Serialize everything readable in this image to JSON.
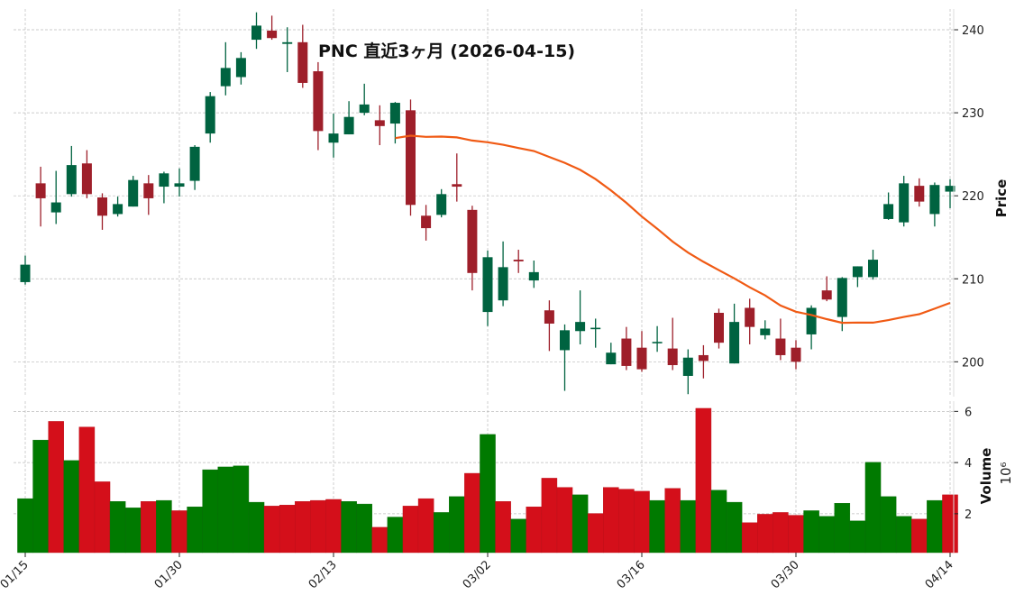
{
  "chart_data": {
    "type": "candlestick",
    "title": "PNC  直近3ヶ月  (2026-04-15)",
    "price_axis": {
      "label": "Price",
      "ticks": [
        200,
        210,
        220,
        230,
        240
      ],
      "ylim": [
        195.8,
        242.5
      ],
      "side": "right"
    },
    "volume_axis": {
      "label": "Volume",
      "scale_label": "10⁶",
      "ticks": [
        2,
        4,
        6
      ],
      "ylim": [
        0.48,
        6.4
      ],
      "side": "right"
    },
    "x_tick_labels": [
      {
        "index": 0,
        "label": "01/15"
      },
      {
        "index": 10,
        "label": "01/30"
      },
      {
        "index": 20,
        "label": "02/13"
      },
      {
        "index": 30,
        "label": "03/02"
      },
      {
        "index": 40,
        "label": "03/16"
      },
      {
        "index": 50,
        "label": "03/30"
      },
      {
        "index": 60,
        "label": "04/14"
      }
    ],
    "grid": true,
    "moving_average_window": 25,
    "colors": {
      "up_candle": "#006340",
      "down_candle": "#9e1f2a",
      "up_volume": "#007a00",
      "down_volume": "#d40f1a",
      "moving_average": "#f05a14"
    },
    "ohlc": [
      [
        209.6,
        212.8,
        209.3,
        211.7
      ],
      [
        221.5,
        223.5,
        216.3,
        219.7
      ],
      [
        218.0,
        223.0,
        216.6,
        219.2
      ],
      [
        220.2,
        226.0,
        219.9,
        223.7
      ],
      [
        223.9,
        225.5,
        219.7,
        220.2
      ],
      [
        219.8,
        220.3,
        215.9,
        217.6
      ],
      [
        217.8,
        219.9,
        217.5,
        219.0
      ],
      [
        218.7,
        222.4,
        218.7,
        221.9
      ],
      [
        221.5,
        222.5,
        217.7,
        219.7
      ],
      [
        221.1,
        222.9,
        219.1,
        222.7
      ],
      [
        221.1,
        223.3,
        219.9,
        221.5
      ],
      [
        221.8,
        226.1,
        220.7,
        225.9
      ],
      [
        227.5,
        232.5,
        226.4,
        232.0
      ],
      [
        233.2,
        238.5,
        232.1,
        235.4
      ],
      [
        234.3,
        237.3,
        233.4,
        236.6
      ],
      [
        238.8,
        242.1,
        237.7,
        240.5
      ],
      [
        239.9,
        241.7,
        238.8,
        239.0
      ],
      [
        238.3,
        240.3,
        234.9,
        238.5
      ],
      [
        238.5,
        240.6,
        233.0,
        233.6
      ],
      [
        235.0,
        236.1,
        225.5,
        227.8
      ],
      [
        226.4,
        229.9,
        224.6,
        227.5
      ],
      [
        227.4,
        231.4,
        227.4,
        229.5
      ],
      [
        230.0,
        233.5,
        229.7,
        231.0
      ],
      [
        229.1,
        230.9,
        226.1,
        228.4
      ],
      [
        228.7,
        231.3,
        226.3,
        231.2
      ],
      [
        230.3,
        231.6,
        217.6,
        218.9
      ],
      [
        217.6,
        218.9,
        214.6,
        216.1
      ],
      [
        217.7,
        220.8,
        217.4,
        220.2
      ],
      [
        221.4,
        225.1,
        219.3,
        221.1
      ],
      [
        218.3,
        218.8,
        208.6,
        210.7
      ],
      [
        206.0,
        213.4,
        204.3,
        212.6
      ],
      [
        207.4,
        214.5,
        206.7,
        211.4
      ],
      [
        212.3,
        213.5,
        210.7,
        212.1
      ],
      [
        209.8,
        212.2,
        208.9,
        210.8
      ],
      [
        206.2,
        207.4,
        201.3,
        204.6
      ],
      [
        201.4,
        204.5,
        196.5,
        203.8
      ],
      [
        203.7,
        208.6,
        202.1,
        204.8
      ],
      [
        204.0,
        205.2,
        201.7,
        204.1
      ],
      [
        199.7,
        202.3,
        199.7,
        201.1
      ],
      [
        202.8,
        204.2,
        199.0,
        199.5
      ],
      [
        201.7,
        203.7,
        198.8,
        199.1
      ],
      [
        202.3,
        204.3,
        201.2,
        202.4
      ],
      [
        201.6,
        205.3,
        199.0,
        199.6
      ],
      [
        198.3,
        201.5,
        196.1,
        200.5
      ],
      [
        200.8,
        202.0,
        198.0,
        200.1
      ],
      [
        205.9,
        206.4,
        201.6,
        202.3
      ],
      [
        199.8,
        207.0,
        199.8,
        204.8
      ],
      [
        206.5,
        207.6,
        202.1,
        204.2
      ],
      [
        203.2,
        205.0,
        202.7,
        204.0
      ],
      [
        202.8,
        205.2,
        200.2,
        200.8
      ],
      [
        201.7,
        202.6,
        199.1,
        200.0
      ],
      [
        203.3,
        206.8,
        201.5,
        206.5
      ],
      [
        208.6,
        210.3,
        207.3,
        207.5
      ],
      [
        205.4,
        210.2,
        203.7,
        210.1
      ],
      [
        210.2,
        211.5,
        209.0,
        211.5
      ],
      [
        210.2,
        213.5,
        209.9,
        212.3
      ],
      [
        217.2,
        220.4,
        217.1,
        219.0
      ],
      [
        216.8,
        222.4,
        216.3,
        221.5
      ],
      [
        221.2,
        222.1,
        218.7,
        219.3
      ],
      [
        217.8,
        221.6,
        216.3,
        221.3
      ],
      [
        220.5,
        222.0,
        218.5,
        221.2
      ]
    ],
    "volume_millions": [
      2.59,
      4.88,
      5.61,
      4.08,
      5.39,
      3.25,
      2.48,
      2.23,
      2.48,
      2.52,
      2.12,
      2.27,
      3.72,
      3.83,
      3.87,
      2.45,
      2.3,
      2.34,
      2.48,
      2.52,
      2.56,
      2.48,
      2.38,
      1.47,
      1.87,
      2.3,
      2.59,
      2.05,
      2.67,
      3.58,
      5.1,
      2.48,
      1.79,
      2.27,
      3.39,
      3.03,
      2.74,
      2.01,
      3.03,
      2.96,
      2.88,
      2.52,
      2.99,
      2.52,
      6.12,
      2.92,
      2.45,
      1.65,
      1.98,
      2.05,
      1.94,
      2.12,
      1.9,
      2.41,
      1.72,
      4.01,
      2.67,
      1.9,
      1.79,
      2.52,
      2.74
    ]
  }
}
